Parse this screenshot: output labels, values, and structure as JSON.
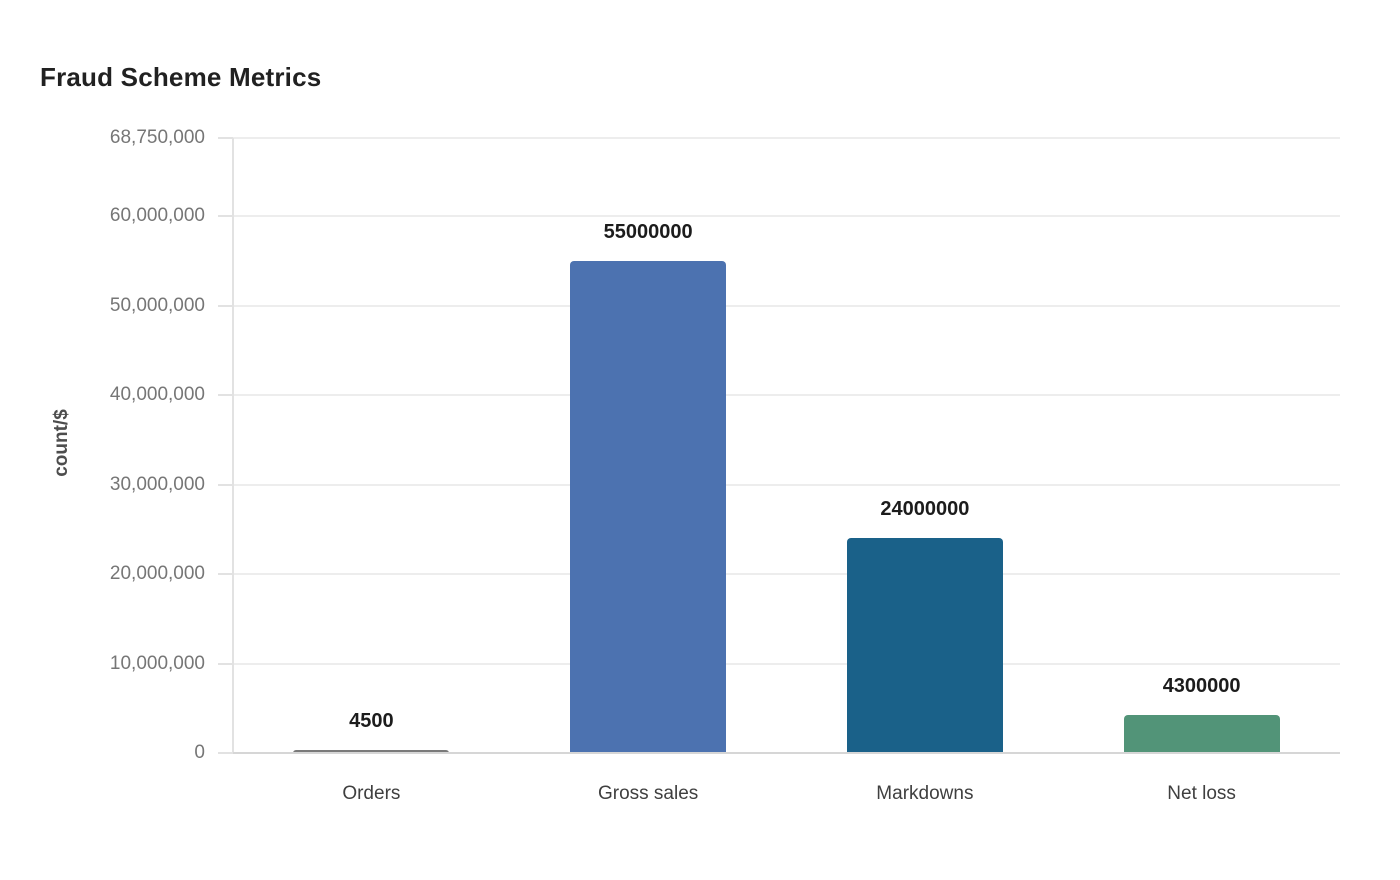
{
  "chart_data": {
    "type": "bar",
    "title": "Fraud Scheme Metrics",
    "ylabel": "count/$",
    "xlabel": "",
    "categories": [
      "Orders",
      "Gross sales",
      "Markdowns",
      "Net loss"
    ],
    "values": [
      4500,
      55000000,
      24000000,
      4300000
    ],
    "value_labels": [
      "4500",
      "55000000",
      "24000000",
      "4300000"
    ],
    "bar_colors": [
      "#7a7a7a",
      "#4c72b0",
      "#1a6189",
      "#529478"
    ],
    "ylim": [
      0,
      68750000
    ],
    "yticks": [
      0,
      10000000,
      20000000,
      30000000,
      40000000,
      50000000,
      60000000,
      68750000
    ],
    "ytick_labels": [
      "0",
      "10,000,000",
      "20,000,000",
      "30,000,000",
      "40,000,000",
      "50,000,000",
      "60,000,000",
      "68,750,000"
    ],
    "grid": true,
    "legend": "none"
  },
  "style": {
    "background": "#ffffff",
    "title_color": "#212121",
    "value_label_color": "#1c1c1c",
    "tick_label_color": "#767676",
    "category_label_color": "#3f3f3f",
    "y_axis_title_color": "#4d4d4d",
    "grid_color": "#ededed",
    "axis_color_left": "#e2e2e2",
    "axis_color_bottom": "#d6d6d6"
  }
}
